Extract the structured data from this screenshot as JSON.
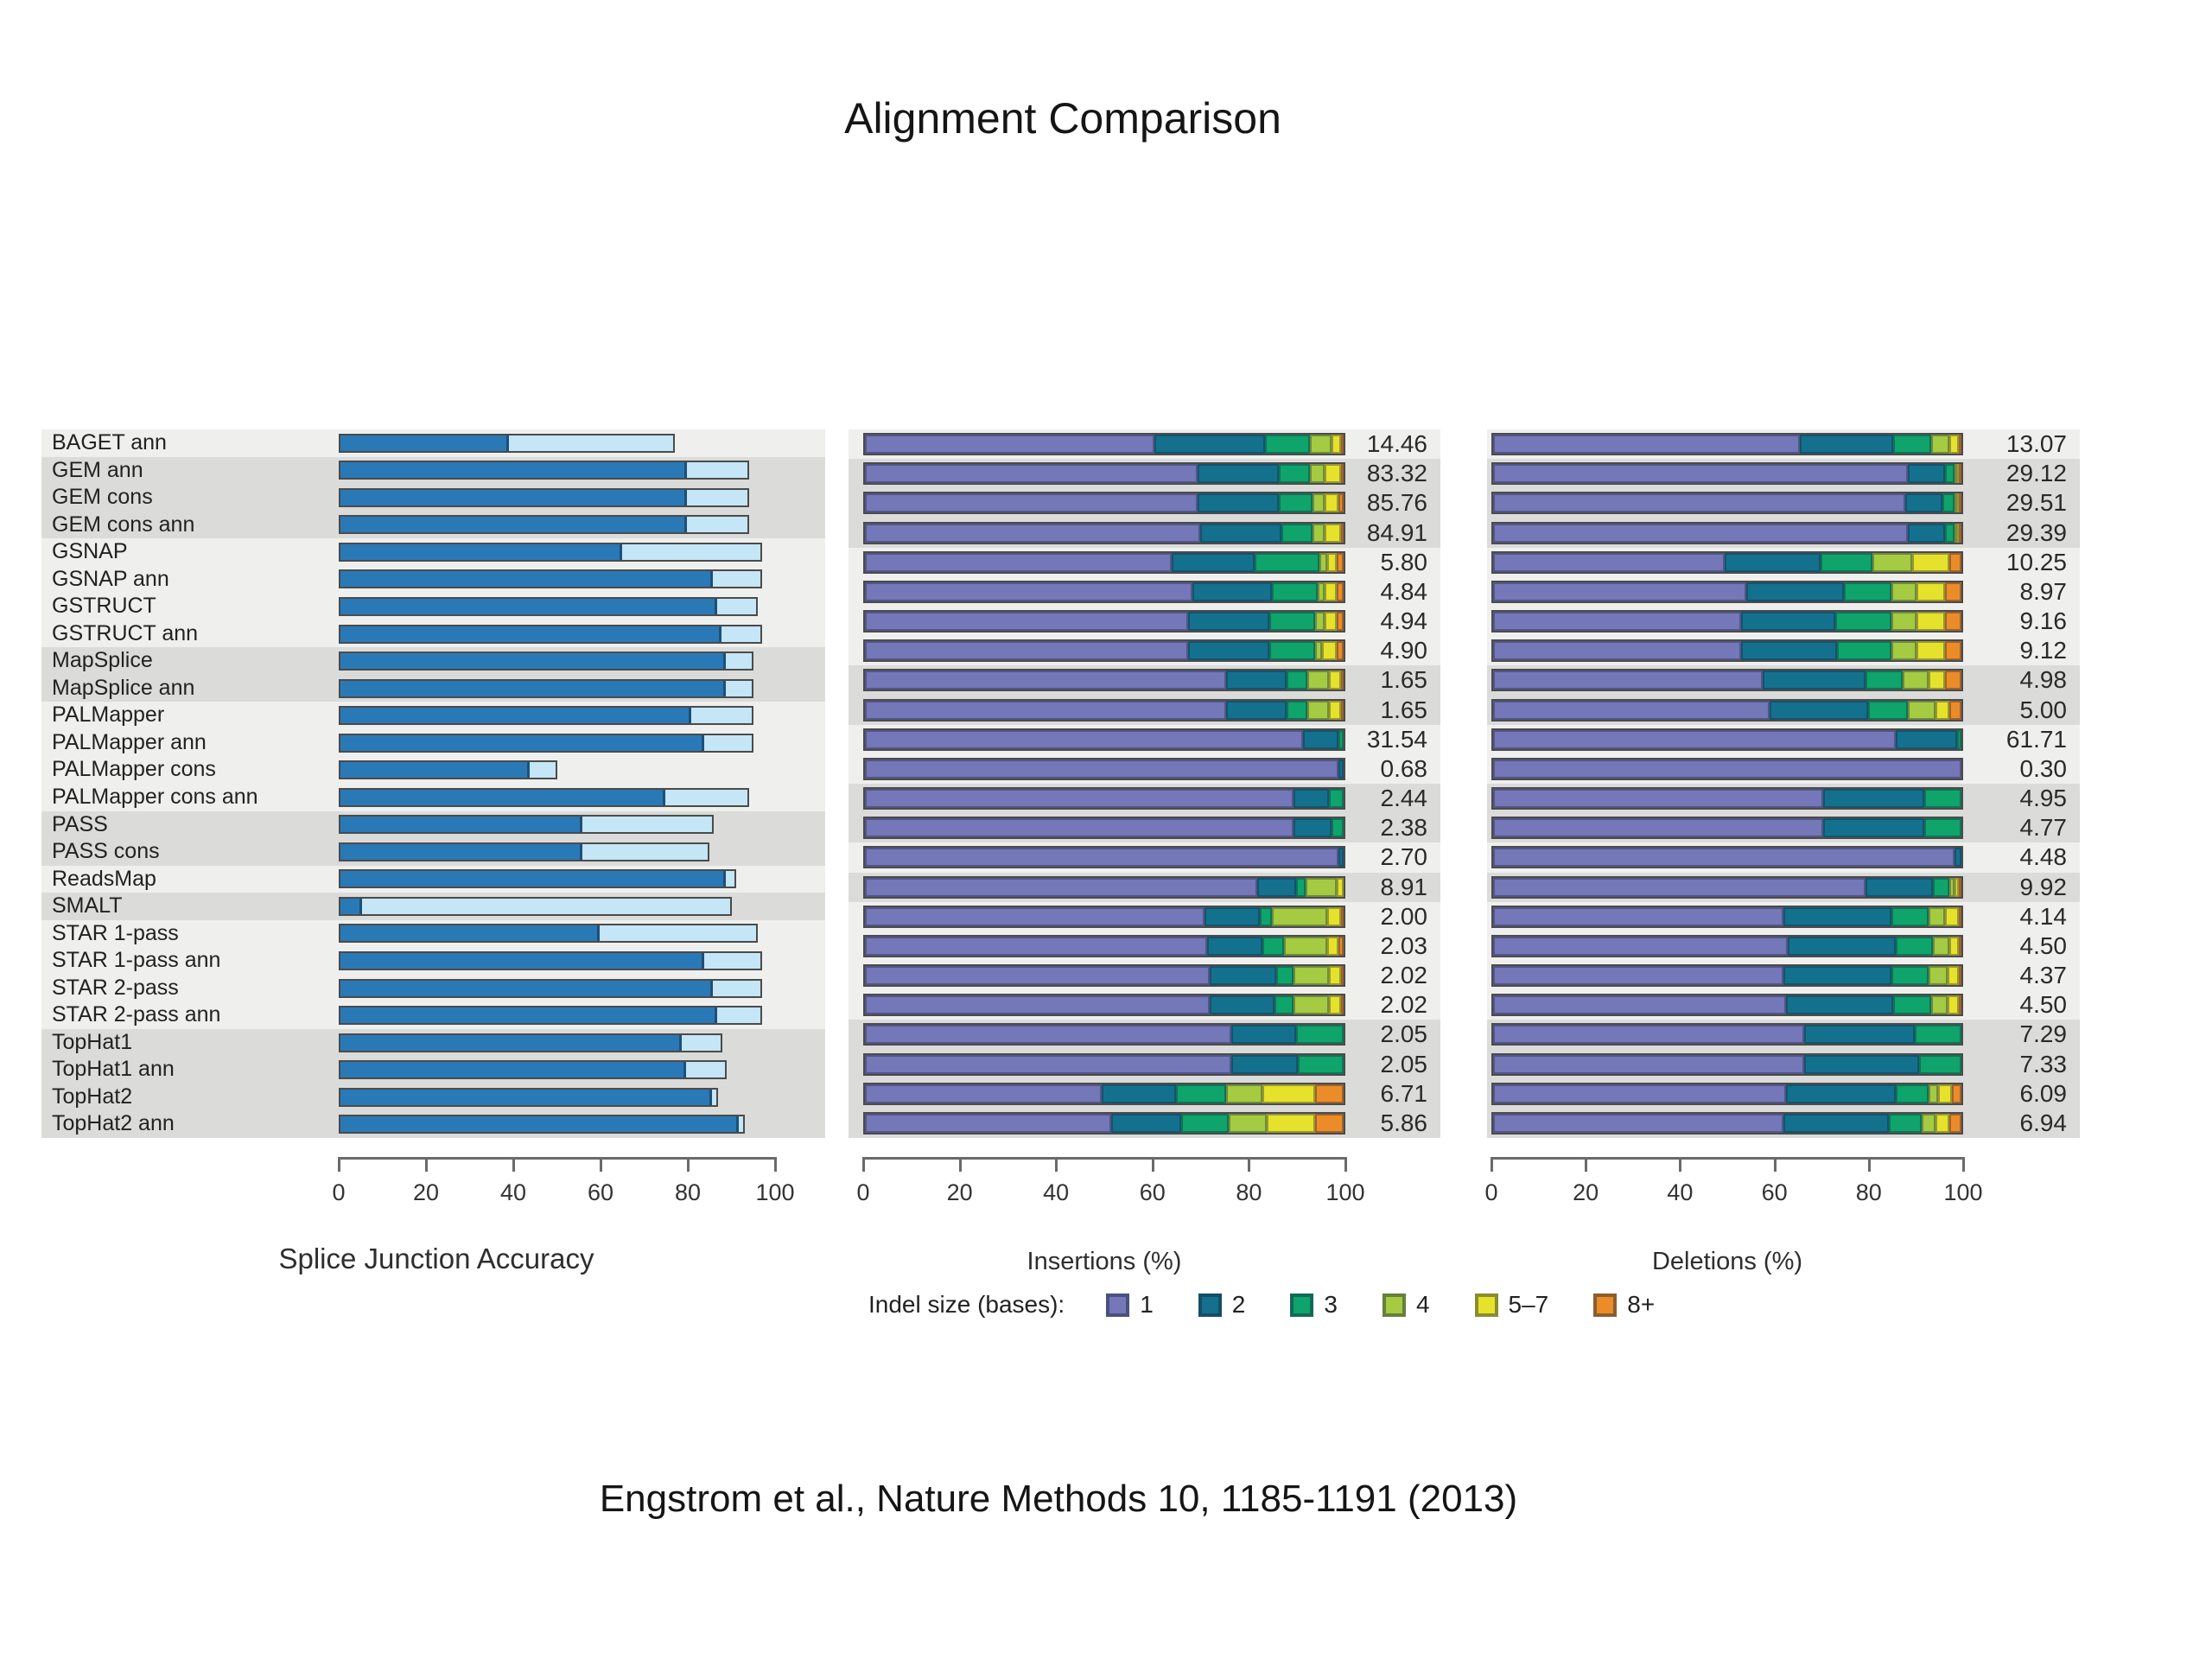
{
  "page": {
    "title": "Alignment Comparison",
    "citation": "Engstrom et al., Nature Methods 10, 1185-1191 (2013)"
  },
  "colors": {
    "band_light": "#EFF0ED",
    "band_dark": "#DBDCD9",
    "bar_border": "#4B4B4B",
    "splice_dark_blue": "#2A79B7",
    "splice_light_blue": "#C4E6F6",
    "axis": "#6A6A6A",
    "text": "#2A2A2A"
  },
  "legend": {
    "label": "Indel size (bases):",
    "items": [
      {
        "label": "1",
        "color": "#7477B8"
      },
      {
        "label": "2",
        "color": "#13718E"
      },
      {
        "label": "3",
        "color": "#0EA46B"
      },
      {
        "label": "4",
        "color": "#A4CB41"
      },
      {
        "label": "5–7",
        "color": "#E6E22B"
      },
      {
        "label": "8+",
        "color": "#EC8C28"
      }
    ]
  },
  "chart_data": [
    {
      "type": "bar",
      "title": "Splice Junction Accuracy panel",
      "xlabel": "Splice Junction Accuracy",
      "xlim": [
        0,
        100
      ],
      "xticks": [
        0,
        20,
        40,
        60,
        80,
        100
      ],
      "grid": false,
      "legend_position": "none",
      "categories": [
        "BAGET ann",
        "GEM ann",
        "GEM cons",
        "GEM cons ann",
        "GSNAP",
        "GSNAP ann",
        "GSTRUCT",
        "GSTRUCT ann",
        "MapSplice",
        "MapSplice ann",
        "PALMapper",
        "PALMapper ann",
        "PALMapper cons",
        "PALMapper cons ann",
        "PASS",
        "PASS cons",
        "ReadsMap",
        "SMALT",
        "STAR 1-pass",
        "STAR 1-pass ann",
        "STAR 2-pass",
        "STAR 2-pass ann",
        "TopHat1",
        "TopHat1 ann",
        "TopHat2",
        "TopHat2 ann"
      ],
      "series": [
        {
          "name": "dark blue segment",
          "values": [
            39,
            80,
            80,
            80,
            65,
            86,
            87,
            88,
            89,
            89,
            81,
            84,
            44,
            75,
            56,
            56,
            89,
            5,
            60,
            84,
            86,
            87,
            79,
            80,
            86,
            92
          ]
        },
        {
          "name": "light blue total",
          "values": [
            77,
            94,
            94,
            94,
            97,
            97,
            96,
            97,
            95,
            95,
            95,
            95,
            50,
            94,
            86,
            85,
            91,
            90,
            96,
            97,
            97,
            97,
            88,
            89,
            87,
            93
          ]
        }
      ],
      "band_groups": [
        1,
        3,
        4,
        2,
        4,
        2,
        1,
        1,
        4,
        4
      ]
    },
    {
      "type": "stacked-bar",
      "title": "Insertions size distribution",
      "xlabel": "Insertions (%)",
      "xlim": [
        0,
        100
      ],
      "xticks": [
        0,
        20,
        40,
        60,
        80,
        100
      ],
      "grid": false,
      "legend_position": "bottom",
      "categories": [
        "BAGET ann",
        "GEM ann",
        "GEM cons",
        "GEM cons ann",
        "GSNAP",
        "GSNAP ann",
        "GSTRUCT",
        "GSTRUCT ann",
        "MapSplice",
        "MapSplice ann",
        "PALMapper ann",
        "PALMapper cons",
        "PASS",
        "PASS cons",
        "ReadsMap",
        "SMALT",
        "STAR 1-pass",
        "STAR 1-pass ann",
        "STAR 2-pass",
        "STAR 2-pass ann",
        "TopHat1",
        "TopHat1 ann",
        "TopHat2",
        "TopHat2 ann"
      ],
      "value_labels": [
        "14.46",
        "83.32",
        "85.76",
        "84.91",
        "5.80",
        "4.84",
        "4.94",
        "4.90",
        "1.65",
        "1.65",
        "31.54",
        "0.68",
        "2.44",
        "2.38",
        "2.70",
        "8.91",
        "2.00",
        "2.03",
        "2.02",
        "2.02",
        "2.05",
        "2.05",
        "6.71",
        "5.86"
      ],
      "series": [
        {
          "name": "1",
          "values": [
            60.5,
            69.5,
            69.5,
            70,
            64,
            68.5,
            67.5,
            67.5,
            75.5,
            75.5,
            91.5,
            99,
            89.5,
            89.5,
            99,
            82,
            71,
            71.5,
            72,
            72,
            76.5,
            76.5,
            49.5,
            51.5
          ]
        },
        {
          "name": "2",
          "values": [
            23,
            17,
            17,
            17,
            17.5,
            16.5,
            17,
            17,
            12.5,
            12.5,
            7.5,
            1,
            7.5,
            8,
            1,
            8,
            11.5,
            11.5,
            14,
            13.5,
            13.5,
            14,
            15.5,
            14.5
          ]
        },
        {
          "name": "3",
          "values": [
            9.5,
            6.5,
            7,
            6.5,
            13.5,
            9.5,
            9.5,
            9.5,
            4.5,
            4.5,
            1,
            0,
            3,
            2.5,
            0,
            2,
            2.5,
            4.5,
            3.5,
            4,
            10,
            9.5,
            10.5,
            10
          ]
        },
        {
          "name": "4",
          "values": [
            4.5,
            3,
            2.5,
            2.5,
            1.5,
            1.5,
            2,
            1.5,
            4.5,
            4.5,
            0,
            0,
            0,
            0,
            0,
            6.5,
            11.5,
            9,
            7.5,
            7.5,
            0,
            0,
            7.5,
            8
          ]
        },
        {
          "name": "5–7",
          "values": [
            2,
            3.5,
            3,
            3.5,
            2,
            2.5,
            2.5,
            3,
            2.5,
            2.5,
            0,
            0,
            0,
            0,
            0,
            1.5,
            3,
            2.5,
            2.5,
            2.5,
            0,
            0,
            11,
            10
          ]
        },
        {
          "name": "8+",
          "values": [
            0.5,
            0.5,
            1,
            0.5,
            1.5,
            1.5,
            1.5,
            1.5,
            0.5,
            0.5,
            0,
            0,
            0,
            0,
            0,
            0,
            0.5,
            1,
            0.5,
            0.5,
            0,
            0,
            6,
            6
          ]
        }
      ],
      "band_groups": [
        1,
        3,
        4,
        2,
        2,
        2,
        1,
        1,
        4,
        4
      ]
    },
    {
      "type": "stacked-bar",
      "title": "Deletions size distribution",
      "xlabel": "Deletions (%)",
      "xlim": [
        0,
        100
      ],
      "xticks": [
        0,
        20,
        40,
        60,
        80,
        100
      ],
      "grid": false,
      "legend_position": "bottom",
      "categories": [
        "BAGET ann",
        "GEM ann",
        "GEM cons",
        "GEM cons ann",
        "GSNAP",
        "GSNAP ann",
        "GSTRUCT",
        "GSTRUCT ann",
        "MapSplice",
        "MapSplice ann",
        "PALMapper ann",
        "PALMapper cons",
        "PASS",
        "PASS cons",
        "ReadsMap",
        "SMALT",
        "STAR 1-pass",
        "STAR 1-pass ann",
        "STAR 2-pass",
        "STAR 2-pass ann",
        "TopHat1",
        "TopHat1 ann",
        "TopHat2",
        "TopHat2 ann"
      ],
      "value_labels": [
        "13.07",
        "29.12",
        "29.51",
        "29.39",
        "10.25",
        "8.97",
        "9.16",
        "9.12",
        "4.98",
        "5.00",
        "61.71",
        "0.30",
        "4.95",
        "4.77",
        "4.48",
        "9.92",
        "4.14",
        "4.50",
        "4.37",
        "4.50",
        "7.29",
        "7.33",
        "6.09",
        "6.94"
      ],
      "series": [
        {
          "name": "1",
          "values": [
            65.5,
            88.5,
            88,
            88.5,
            49.5,
            54,
            53,
            53,
            57.5,
            59,
            86,
            100,
            70.5,
            70.5,
            98.5,
            79.5,
            62,
            63,
            62,
            62.5,
            66.5,
            66.5,
            62.5,
            62
          ]
        },
        {
          "name": "2",
          "values": [
            20,
            8,
            8,
            8,
            20.5,
            21,
            20,
            20.5,
            22,
            21,
            13,
            0,
            21.5,
            21.5,
            1.5,
            14.5,
            23,
            23,
            23,
            23,
            23.5,
            24.5,
            23.5,
            22.5
          ]
        },
        {
          "name": "3",
          "values": [
            8,
            2,
            2.5,
            2,
            11,
            10,
            12,
            11.5,
            8,
            8.5,
            1,
            0,
            8,
            8,
            0,
            3.5,
            8,
            8,
            8,
            8,
            10,
            9,
            7,
            7
          ]
        },
        {
          "name": "4",
          "values": [
            4,
            0.5,
            0.5,
            0.5,
            8.5,
            5.5,
            5.5,
            5.5,
            5.5,
            6,
            0,
            0,
            0,
            0,
            0,
            1,
            3.5,
            3.5,
            4,
            3.5,
            0,
            0,
            2,
            3
          ]
        },
        {
          "name": "5–7",
          "values": [
            2,
            0.5,
            0.5,
            0.5,
            8,
            6,
            6,
            6,
            3.5,
            3,
            0,
            0,
            0,
            0,
            0,
            1,
            3,
            2,
            2.5,
            2.5,
            0,
            0,
            3,
            3
          ]
        },
        {
          "name": "8+",
          "values": [
            0.5,
            0.5,
            0.5,
            0.5,
            2.5,
            3.5,
            3.5,
            3.5,
            3.5,
            2.5,
            0,
            0,
            0,
            0,
            0,
            0.5,
            0.5,
            0.5,
            0.5,
            0.5,
            0,
            0,
            2,
            2.5
          ]
        }
      ],
      "band_groups": [
        1,
        3,
        4,
        2,
        2,
        2,
        1,
        1,
        4,
        4
      ]
    }
  ]
}
